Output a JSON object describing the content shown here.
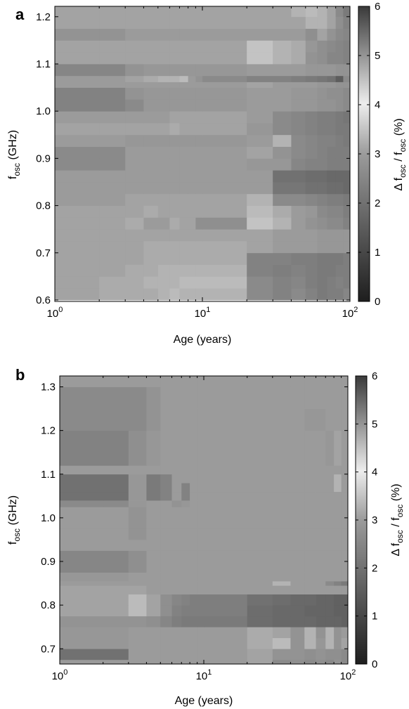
{
  "chart_data": [
    {
      "panel_label": "a",
      "type": "heatmap",
      "xlabel": "Age (years)",
      "ylabel": "f",
      "ylabel_sub": "osc",
      "ylabel_unit": " (GHz)",
      "xscale": "log",
      "xlim": [
        1,
        100
      ],
      "ylim": [
        0.597,
        1.222
      ],
      "xticks": [
        {
          "v": 1,
          "exp": "0"
        },
        {
          "v": 10,
          "exp": "1"
        },
        {
          "v": 100,
          "exp": "2"
        }
      ],
      "yticks": [
        "0.6",
        "0.7",
        "0.8",
        "0.9",
        "1.0",
        "1.1",
        "1.2"
      ],
      "x_edges": [
        1,
        2,
        3,
        4,
        5,
        6,
        7,
        8,
        9,
        10,
        20,
        30,
        40,
        50,
        60,
        70,
        80,
        90,
        100
      ],
      "y_edges": [
        0.6,
        0.625,
        0.65,
        0.675,
        0.7,
        0.725,
        0.75,
        0.775,
        0.8,
        0.825,
        0.85,
        0.875,
        0.9,
        0.925,
        0.95,
        0.975,
        1.0,
        1.025,
        1.05,
        1.062,
        1.075,
        1.1,
        1.125,
        1.15,
        1.175,
        1.2,
        1.222
      ],
      "values": [
        [
          3.1,
          3.2,
          3.2,
          3.2,
          3.3,
          3.4,
          3.3,
          3.3,
          3.3,
          3.3,
          2.6,
          2.4,
          2.6,
          2.4,
          2.2,
          2.3,
          2.3,
          2.5
        ],
        [
          3.1,
          3.2,
          3.2,
          3.3,
          3.3,
          3.3,
          3.4,
          3.4,
          3.4,
          3.4,
          2.6,
          2.4,
          2.5,
          2.3,
          2.2,
          2.3,
          2.4,
          2.3
        ],
        [
          3.1,
          3.1,
          3.2,
          3.2,
          3.3,
          3.3,
          3.3,
          3.3,
          3.3,
          3.3,
          2.4,
          2.3,
          2.4,
          2.3,
          2.2,
          2.2,
          2.3,
          2.3
        ],
        [
          3.1,
          3.1,
          3.1,
          3.2,
          3.2,
          3.2,
          3.2,
          3.2,
          3.2,
          3.2,
          2.4,
          2.4,
          2.3,
          2.3,
          2.2,
          2.2,
          2.2,
          2.3
        ],
        [
          3.1,
          3.1,
          3.1,
          3.2,
          3.2,
          3.2,
          3.2,
          3.2,
          3.2,
          3.2,
          3.1,
          3.0,
          3.0,
          3.0,
          2.9,
          2.9,
          2.9,
          2.9
        ],
        [
          3.1,
          3.1,
          3.1,
          3.1,
          3.1,
          3.1,
          3.1,
          3.1,
          3.1,
          3.1,
          3.1,
          3.0,
          3.0,
          3.0,
          2.9,
          2.9,
          2.9,
          2.9
        ],
        [
          3.1,
          3.1,
          3.2,
          3.0,
          3.0,
          3.2,
          3.1,
          3.1,
          2.7,
          2.7,
          3.5,
          3.3,
          3.0,
          2.8,
          2.7,
          2.6,
          2.6,
          2.4
        ],
        [
          3.1,
          3.1,
          3.1,
          3.2,
          3.1,
          3.1,
          3.1,
          3.1,
          3.1,
          3.1,
          3.4,
          3.2,
          3.0,
          2.9,
          2.6,
          2.5,
          2.5,
          2.3
        ],
        [
          3.0,
          3.0,
          3.1,
          3.1,
          3.1,
          3.1,
          3.1,
          3.1,
          3.1,
          3.1,
          3.3,
          2.6,
          2.6,
          2.5,
          2.4,
          2.3,
          2.3,
          2.2
        ],
        [
          3.0,
          3.0,
          3.0,
          3.0,
          3.0,
          3.0,
          3.0,
          3.0,
          3.0,
          3.0,
          3.0,
          2.1,
          2.1,
          2.0,
          2.0,
          1.9,
          1.9,
          1.8
        ],
        [
          3.0,
          3.0,
          3.0,
          3.0,
          3.0,
          3.0,
          3.0,
          3.0,
          3.0,
          3.0,
          3.0,
          2.0,
          2.0,
          1.9,
          1.9,
          1.8,
          1.8,
          1.8
        ],
        [
          2.6,
          2.6,
          3.0,
          3.0,
          3.0,
          3.0,
          3.0,
          3.0,
          3.0,
          3.0,
          2.9,
          2.9,
          2.5,
          2.4,
          2.4,
          2.3,
          2.3,
          2.3
        ],
        [
          2.6,
          2.6,
          3.0,
          3.0,
          3.0,
          3.0,
          3.0,
          3.0,
          3.0,
          3.0,
          3.1,
          2.8,
          2.6,
          2.5,
          2.4,
          2.3,
          2.3,
          2.3
        ],
        [
          3.0,
          3.0,
          2.9,
          2.9,
          2.9,
          2.9,
          2.9,
          2.9,
          2.9,
          2.9,
          3.0,
          3.3,
          2.6,
          2.5,
          2.4,
          2.4,
          2.3,
          2.2
        ],
        [
          3.1,
          3.1,
          3.1,
          3.1,
          3.1,
          3.2,
          3.1,
          3.1,
          3.1,
          3.1,
          2.9,
          2.6,
          2.5,
          2.4,
          2.3,
          2.3,
          2.2,
          2.2
        ],
        [
          3.0,
          3.0,
          3.0,
          3.0,
          3.0,
          3.1,
          3.1,
          3.1,
          3.1,
          3.1,
          3.0,
          2.6,
          2.5,
          2.4,
          2.3,
          2.3,
          2.2,
          2.1
        ],
        [
          2.4,
          2.4,
          2.6,
          2.9,
          2.9,
          2.9,
          2.9,
          2.9,
          2.9,
          2.9,
          3.0,
          3.0,
          2.9,
          2.9,
          2.8,
          2.8,
          2.7,
          2.6
        ],
        [
          2.4,
          2.4,
          2.8,
          2.9,
          2.9,
          2.9,
          2.9,
          2.9,
          2.9,
          2.9,
          3.0,
          3.0,
          2.9,
          2.9,
          2.8,
          2.7,
          2.7,
          2.6
        ],
        [
          3.0,
          3.0,
          3.0,
          3.0,
          3.0,
          3.0,
          3.0,
          3.0,
          3.0,
          3.0,
          3.1,
          3.0,
          3.0,
          3.0,
          2.9,
          2.9,
          2.8,
          2.8
        ],
        [
          3.0,
          3.0,
          3.1,
          3.2,
          3.3,
          3.3,
          3.4,
          3.0,
          2.8,
          2.6,
          2.4,
          2.4,
          2.3,
          2.2,
          2.1,
          2.0,
          1.5,
          2.6
        ],
        [
          2.5,
          2.5,
          2.8,
          2.9,
          2.9,
          2.9,
          2.9,
          2.9,
          2.9,
          2.9,
          3.0,
          3.0,
          3.0,
          2.9,
          2.9,
          2.9,
          2.8,
          2.8
        ],
        [
          3.1,
          3.1,
          3.1,
          3.1,
          3.1,
          3.1,
          3.1,
          3.1,
          3.1,
          3.1,
          3.5,
          3.3,
          3.2,
          2.8,
          2.7,
          2.5,
          2.5,
          2.4
        ],
        [
          3.1,
          3.1,
          3.1,
          3.1,
          3.1,
          3.1,
          3.1,
          3.1,
          3.1,
          3.1,
          3.5,
          3.3,
          3.2,
          2.9,
          2.7,
          2.6,
          2.5,
          2.4
        ],
        [
          2.8,
          2.8,
          3.0,
          3.0,
          3.0,
          3.0,
          3.0,
          3.0,
          3.0,
          3.0,
          3.0,
          3.0,
          3.0,
          2.7,
          3.1,
          2.8,
          2.6,
          2.5
        ],
        [
          3.1,
          3.1,
          3.1,
          3.1,
          3.1,
          3.1,
          3.1,
          3.1,
          3.1,
          3.1,
          3.1,
          3.1,
          3.1,
          3.3,
          3.3,
          3.1,
          2.7,
          2.4
        ],
        [
          3.1,
          3.1,
          3.1,
          3.1,
          3.1,
          3.1,
          3.1,
          3.1,
          3.1,
          3.1,
          3.1,
          3.1,
          3.3,
          3.4,
          3.3,
          3.1,
          2.6,
          2.2
        ]
      ],
      "colorbar": {
        "label": "Δ f",
        "label_sub": "osc",
        "label_mid": " / f",
        "label_sub2": "osc",
        "label_unit": " (%)",
        "min": 0,
        "max": 6,
        "ticks": [
          "0",
          "1",
          "2",
          "3",
          "4",
          "5",
          "6"
        ]
      }
    },
    {
      "panel_label": "b",
      "type": "heatmap",
      "xlabel": "Age (years)",
      "ylabel": "f",
      "ylabel_sub": "osc",
      "ylabel_unit": " (GHz)",
      "xscale": "log",
      "xlim": [
        1,
        100
      ],
      "ylim": [
        0.665,
        1.325
      ],
      "xticks": [
        {
          "v": 1,
          "exp": "0"
        },
        {
          "v": 10,
          "exp": "1"
        },
        {
          "v": 100,
          "exp": "2"
        }
      ],
      "yticks": [
        "0.7",
        "0.8",
        "0.9",
        "1.0",
        "1.1",
        "1.2",
        "1.3"
      ],
      "x_edges": [
        1,
        2,
        3,
        4,
        5,
        6,
        7,
        8,
        9,
        10,
        20,
        30,
        40,
        50,
        60,
        70,
        80,
        90,
        100
      ],
      "y_edges": [
        0.665,
        0.675,
        0.7,
        0.725,
        0.75,
        0.775,
        0.8,
        0.825,
        0.845,
        0.855,
        0.875,
        0.9,
        0.925,
        0.95,
        0.975,
        1.0,
        1.025,
        1.04,
        1.06,
        1.08,
        1.1,
        1.12,
        1.14,
        1.16,
        1.2,
        1.25,
        1.3,
        1.325
      ],
      "values": [
        [
          3.0,
          3.0,
          3.0,
          3.0,
          3.0,
          3.0,
          3.0,
          3.0,
          3.0,
          3.0,
          3.1,
          2.6,
          2.7,
          2.6,
          2.7,
          2.6,
          2.8,
          2.6
        ],
        [
          2.0,
          2.0,
          3.0,
          3.0,
          3.0,
          3.0,
          3.0,
          3.0,
          3.0,
          3.0,
          3.1,
          2.8,
          2.8,
          2.7,
          2.8,
          2.7,
          2.7,
          2.6
        ],
        [
          2.9,
          2.9,
          3.0,
          3.0,
          3.0,
          3.0,
          3.0,
          3.0,
          3.0,
          3.0,
          3.2,
          3.4,
          2.8,
          3.3,
          2.9,
          3.3,
          2.8,
          3.1
        ],
        [
          2.9,
          2.9,
          3.0,
          3.0,
          3.0,
          3.0,
          3.0,
          3.0,
          3.0,
          3.0,
          3.2,
          3.1,
          2.8,
          3.3,
          2.8,
          3.3,
          2.8,
          3.0
        ],
        [
          2.8,
          2.8,
          2.8,
          2.7,
          2.5,
          2.3,
          2.2,
          2.2,
          2.2,
          2.2,
          1.9,
          1.8,
          1.8,
          1.8,
          1.7,
          1.7,
          1.7,
          1.6
        ],
        [
          3.1,
          3.1,
          3.4,
          3.1,
          2.7,
          2.4,
          2.3,
          2.3,
          2.3,
          2.3,
          1.9,
          1.8,
          1.8,
          1.7,
          1.7,
          1.7,
          1.6,
          1.6
        ],
        [
          3.1,
          3.1,
          3.4,
          3.1,
          2.7,
          2.5,
          2.4,
          2.3,
          2.3,
          2.3,
          2.0,
          1.9,
          1.8,
          1.8,
          1.7,
          1.7,
          1.6,
          1.6
        ],
        [
          3.1,
          3.1,
          3.1,
          3.0,
          3.0,
          3.0,
          3.0,
          3.0,
          3.0,
          3.0,
          3.0,
          3.0,
          3.0,
          3.0,
          3.0,
          3.0,
          3.0,
          3.0
        ],
        [
          3.0,
          3.0,
          3.0,
          3.0,
          3.0,
          3.0,
          3.0,
          3.0,
          3.0,
          3.0,
          3.0,
          3.3,
          3.0,
          3.0,
          3.0,
          2.6,
          2.4,
          2.2
        ],
        [
          2.9,
          2.9,
          3.0,
          3.0,
          3.0,
          3.0,
          3.0,
          3.0,
          3.0,
          3.0,
          3.0,
          3.0,
          3.0,
          3.0,
          3.0,
          3.0,
          3.0,
          3.0
        ],
        [
          2.5,
          2.5,
          2.7,
          3.0,
          3.0,
          3.0,
          3.0,
          3.0,
          3.0,
          3.0,
          3.0,
          3.0,
          3.0,
          3.0,
          3.0,
          3.0,
          3.0,
          3.0
        ],
        [
          2.5,
          2.5,
          2.7,
          3.0,
          3.0,
          3.0,
          3.0,
          3.0,
          3.0,
          3.0,
          3.0,
          3.0,
          3.0,
          3.0,
          3.0,
          3.0,
          3.0,
          3.0
        ],
        [
          3.0,
          3.0,
          3.0,
          3.0,
          3.0,
          3.0,
          3.0,
          3.0,
          3.0,
          3.0,
          3.0,
          3.0,
          3.0,
          3.0,
          3.0,
          3.0,
          3.0,
          3.0
        ],
        [
          3.0,
          3.0,
          2.8,
          3.0,
          3.0,
          3.0,
          3.0,
          3.0,
          3.0,
          3.0,
          3.0,
          3.0,
          3.0,
          3.0,
          3.0,
          3.0,
          3.0,
          3.0
        ],
        [
          3.0,
          3.0,
          2.8,
          3.0,
          3.0,
          3.0,
          3.0,
          3.0,
          3.0,
          3.0,
          3.0,
          3.0,
          3.0,
          3.0,
          3.0,
          3.0,
          3.0,
          3.0
        ],
        [
          3.0,
          3.0,
          2.8,
          3.0,
          3.0,
          3.0,
          3.0,
          3.0,
          3.0,
          3.0,
          3.0,
          3.0,
          3.0,
          3.0,
          3.0,
          3.0,
          3.0,
          3.0
        ],
        [
          2.6,
          2.6,
          2.9,
          3.0,
          3.0,
          2.8,
          2.9,
          3.0,
          3.0,
          3.0,
          3.0,
          3.0,
          3.0,
          3.0,
          3.0,
          3.0,
          3.0,
          3.0
        ],
        [
          2.0,
          2.0,
          2.9,
          2.2,
          2.4,
          3.0,
          2.4,
          3.0,
          3.0,
          3.0,
          3.0,
          3.0,
          3.0,
          3.0,
          3.0,
          3.0,
          3.0,
          3.0
        ],
        [
          2.0,
          2.0,
          2.9,
          2.2,
          2.4,
          3.0,
          2.4,
          3.0,
          3.0,
          3.0,
          3.0,
          3.0,
          3.0,
          3.0,
          3.0,
          3.0,
          3.3,
          3.0
        ],
        [
          2.0,
          2.0,
          2.9,
          2.2,
          2.4,
          3.0,
          3.0,
          3.0,
          3.0,
          3.0,
          3.0,
          3.0,
          3.0,
          3.0,
          3.0,
          3.0,
          3.3,
          3.0
        ],
        [
          3.0,
          3.0,
          3.0,
          3.0,
          3.0,
          3.0,
          3.0,
          3.0,
          3.0,
          3.0,
          3.0,
          3.0,
          3.0,
          3.0,
          3.0,
          3.0,
          3.0,
          3.0
        ],
        [
          2.4,
          2.4,
          2.7,
          2.9,
          3.0,
          3.0,
          3.0,
          3.0,
          3.0,
          3.0,
          3.0,
          3.0,
          3.0,
          3.0,
          3.0,
          2.9,
          3.1,
          3.0
        ],
        [
          2.4,
          2.4,
          2.7,
          2.9,
          3.0,
          3.0,
          3.0,
          3.0,
          3.0,
          3.0,
          3.0,
          3.0,
          3.0,
          3.0,
          3.0,
          2.9,
          3.1,
          3.0
        ],
        [
          2.4,
          2.4,
          2.7,
          2.9,
          3.0,
          3.0,
          3.0,
          3.0,
          3.0,
          3.0,
          3.0,
          3.0,
          3.0,
          3.0,
          3.0,
          2.9,
          3.1,
          3.0
        ],
        [
          2.6,
          2.6,
          2.6,
          2.8,
          3.0,
          3.0,
          3.0,
          3.0,
          3.0,
          3.0,
          3.0,
          3.0,
          3.0,
          2.9,
          2.9,
          3.0,
          3.0,
          3.0
        ],
        [
          2.6,
          2.6,
          2.6,
          2.8,
          3.0,
          3.0,
          3.0,
          3.0,
          3.0,
          3.0,
          3.0,
          3.0,
          3.0,
          3.0,
          3.0,
          3.0,
          3.0,
          3.0
        ],
        [
          3.0,
          3.0,
          3.0,
          3.0,
          3.0,
          3.0,
          3.0,
          3.0,
          3.0,
          3.0,
          3.0,
          3.0,
          3.0,
          3.0,
          3.0,
          3.0,
          3.0,
          3.0
        ]
      ],
      "colorbar": {
        "label": "Δ f",
        "label_sub": "osc",
        "label_mid": " / f",
        "label_sub2": "osc",
        "label_unit": " (%)",
        "min": 0,
        "max": 6,
        "ticks": [
          "0",
          "1",
          "2",
          "3",
          "4",
          "5",
          "6"
        ]
      }
    }
  ]
}
